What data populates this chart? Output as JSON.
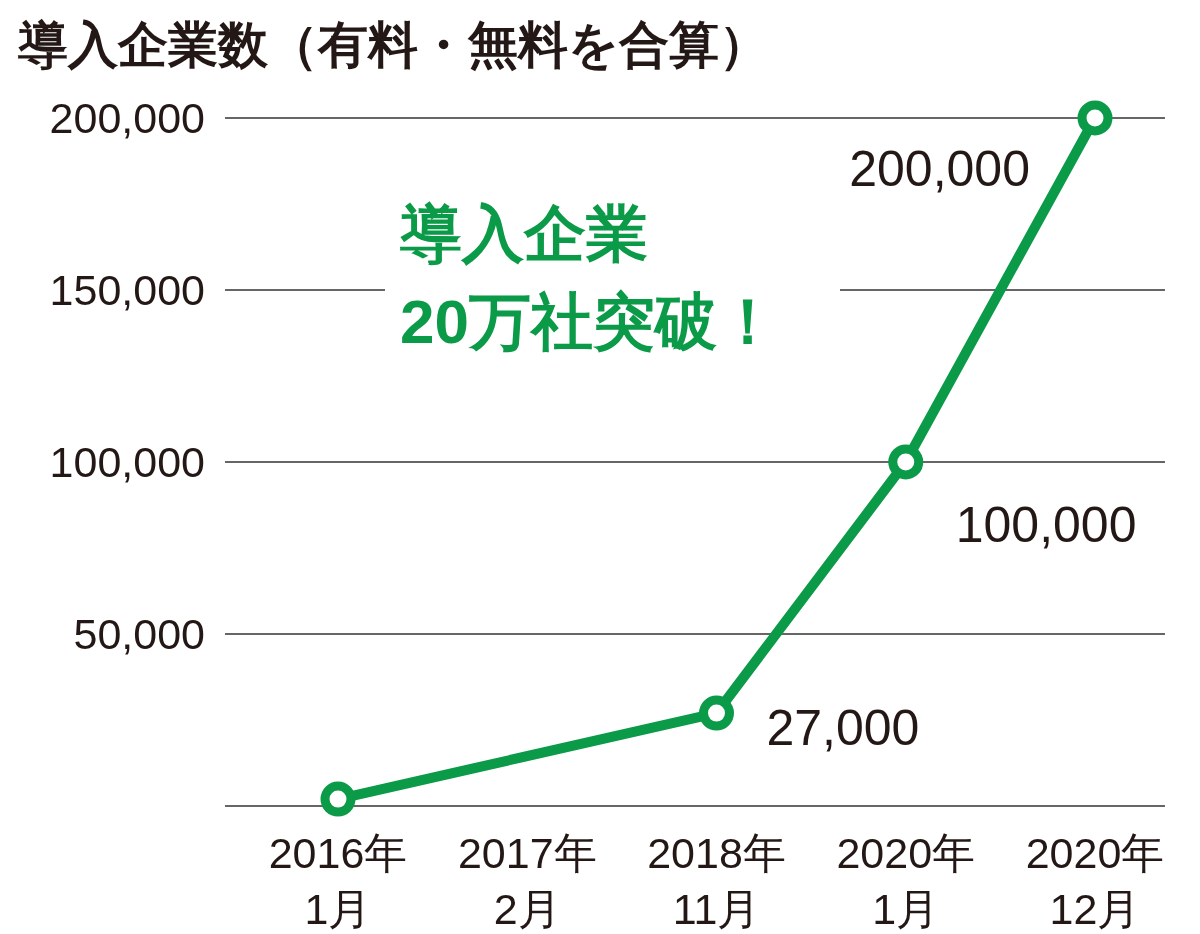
{
  "chart_data": {
    "type": "line",
    "title": "導入企業数（有料・無料を合算）",
    "categories": [
      "2016年\n1月",
      "2017年\n2月",
      "2018年\n11月",
      "2020年\n1月",
      "2020年\n12月"
    ],
    "values": [
      2000,
      null,
      27000,
      100000,
      200000
    ],
    "value_labels": [
      null,
      null,
      "27,000",
      "100,000",
      "200,000"
    ],
    "color": "#0a9a48",
    "marker": "circle",
    "ylim": [
      0,
      200000
    ],
    "yticks": [
      {
        "value": 0,
        "label": null
      },
      {
        "value": 50000,
        "label": "50,000"
      },
      {
        "value": 100000,
        "label": "100,000"
      },
      {
        "value": 150000,
        "label": "150,000"
      },
      {
        "value": 200000,
        "label": "200,000"
      }
    ],
    "grid": "y",
    "annotations": [
      "導入企業\n20万社突破！"
    ]
  }
}
